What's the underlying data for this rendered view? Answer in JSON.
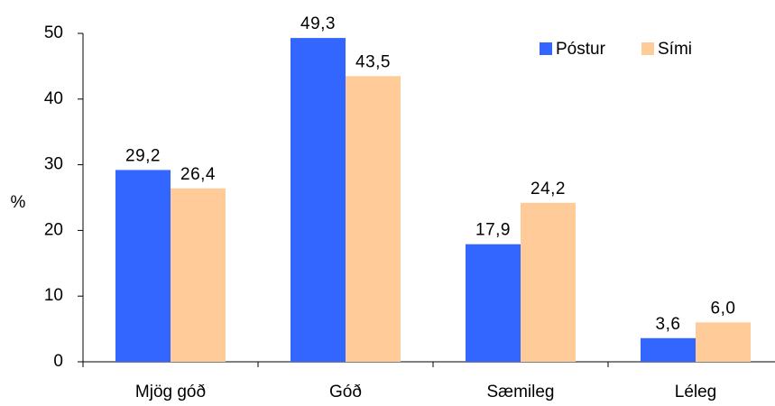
{
  "chart_data": {
    "type": "bar",
    "title": "",
    "xlabel": "",
    "ylabel": "%",
    "ylim": [
      0,
      50
    ],
    "yticks": [
      0,
      10,
      20,
      30,
      40,
      50
    ],
    "grid": false,
    "legend_position": "top-right",
    "categories": [
      "Mjög góð",
      "Góð",
      "Sæmileg",
      "Léleg"
    ],
    "series": [
      {
        "name": "Póstur",
        "color": "#3366FF",
        "values": [
          29.2,
          49.3,
          17.9,
          3.6
        ],
        "labels": [
          "29,2",
          "49,3",
          "17,9",
          "3,6"
        ]
      },
      {
        "name": "Sími",
        "color": "#FFCC99",
        "values": [
          26.4,
          43.5,
          24.2,
          6.0
        ],
        "labels": [
          "26,4",
          "43,5",
          "24,2",
          "6,0"
        ]
      }
    ]
  }
}
